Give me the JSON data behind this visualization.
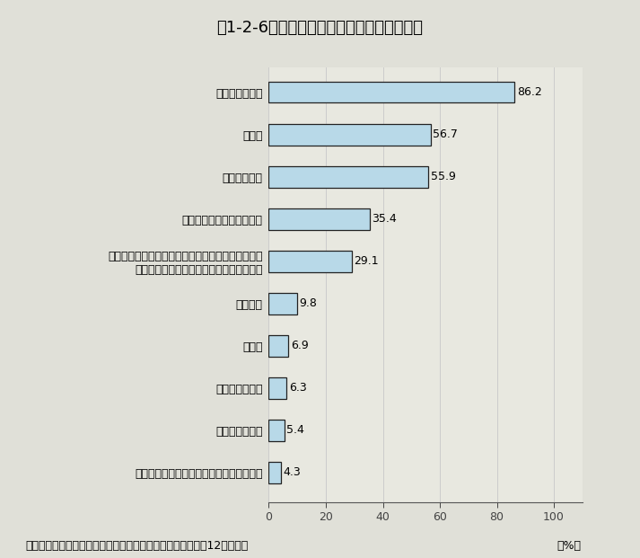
{
  "title": "第1-2-6図　民間企業が研究者に求めること",
  "categories": [
    "独創性・創造性",
    "探究心",
    "積極性・覇気",
    "深い専門分野の知識、技術",
    "広範な分野の知識・技術（専門以外の技術分野、経\n　営感覚や知的財産権に対する知識など）",
    "語学能力",
    "協調性",
    "リーダーシップ",
    "優れた研究実績",
    "大学、国研等、他企業などとの幅広い人脈"
  ],
  "values": [
    86.2,
    56.7,
    55.9,
    35.4,
    29.1,
    9.8,
    6.9,
    6.3,
    5.4,
    4.3
  ],
  "bar_color": "#b8d9e8",
  "bar_edge_color": "#222222",
  "xlabel_unit": "（%）",
  "xlim": [
    0,
    110
  ],
  "xticks": [
    0,
    20,
    40,
    60,
    80,
    100
  ],
  "background_color": "#e0e0d8",
  "plot_background": "#e8e8e0",
  "footer": "資料：文部科学省「民間企業の研究活動に関する調査（平成12年度）」",
  "title_fontsize": 13,
  "label_fontsize": 9,
  "value_fontsize": 9,
  "footer_fontsize": 9,
  "bar_height": 0.5,
  "bar_spacing": 1.0
}
